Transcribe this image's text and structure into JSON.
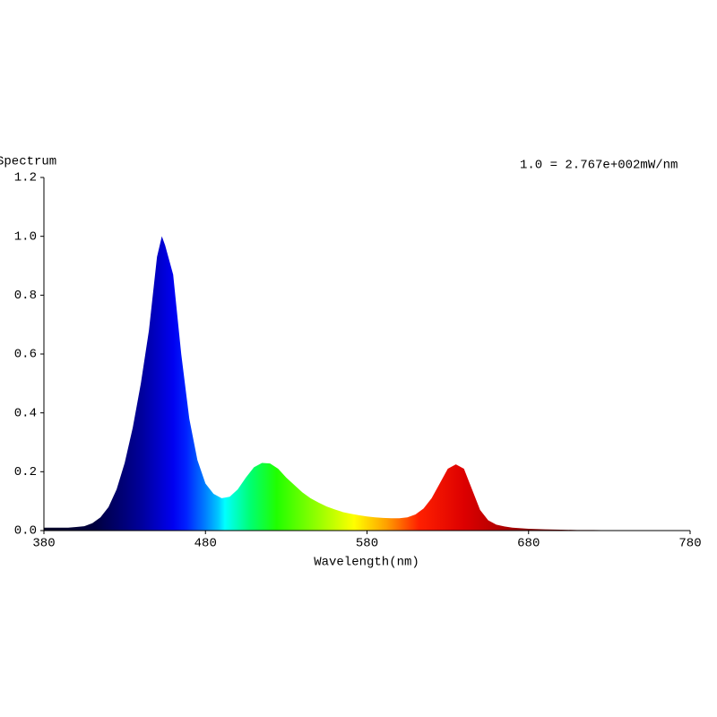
{
  "chart_data": {
    "type": "area",
    "title": "Spectrum",
    "annotation": "1.0 = 2.767e+002mW/nm",
    "x_label": "Wavelength(nm)",
    "x": [
      380,
      385,
      390,
      395,
      400,
      405,
      410,
      415,
      420,
      425,
      430,
      435,
      440,
      445,
      450,
      453,
      455,
      460,
      465,
      470,
      475,
      480,
      485,
      490,
      495,
      500,
      505,
      510,
      515,
      520,
      525,
      530,
      535,
      540,
      545,
      550,
      555,
      560,
      565,
      570,
      575,
      580,
      585,
      590,
      595,
      600,
      605,
      610,
      615,
      620,
      625,
      630,
      635,
      640,
      645,
      650,
      655,
      660,
      665,
      670,
      675,
      680,
      690,
      700,
      710,
      720,
      730,
      740,
      750,
      760,
      770,
      780
    ],
    "values": [
      0.01,
      0.01,
      0.01,
      0.01,
      0.012,
      0.015,
      0.025,
      0.045,
      0.08,
      0.14,
      0.23,
      0.35,
      0.5,
      0.68,
      0.93,
      1.0,
      0.97,
      0.87,
      0.6,
      0.38,
      0.24,
      0.16,
      0.125,
      0.11,
      0.115,
      0.14,
      0.18,
      0.215,
      0.23,
      0.228,
      0.21,
      0.18,
      0.155,
      0.13,
      0.11,
      0.095,
      0.082,
      0.072,
      0.063,
      0.057,
      0.052,
      0.048,
      0.045,
      0.043,
      0.042,
      0.042,
      0.045,
      0.055,
      0.075,
      0.11,
      0.16,
      0.21,
      0.225,
      0.21,
      0.14,
      0.07,
      0.035,
      0.02,
      0.014,
      0.01,
      0.008,
      0.006,
      0.004,
      0.003,
      0.002,
      0.002,
      0.001,
      0.001,
      0,
      0,
      0,
      0
    ],
    "xlim": [
      380,
      780
    ],
    "ylim": [
      0,
      1.2
    ],
    "xticks": [
      380,
      480,
      580,
      680,
      780
    ],
    "yticks": [
      {
        "value": 0,
        "label": "0.0"
      },
      0.2,
      0.4,
      0.6,
      0.8,
      {
        "value": 1,
        "label": "1.0"
      },
      1.2
    ]
  }
}
